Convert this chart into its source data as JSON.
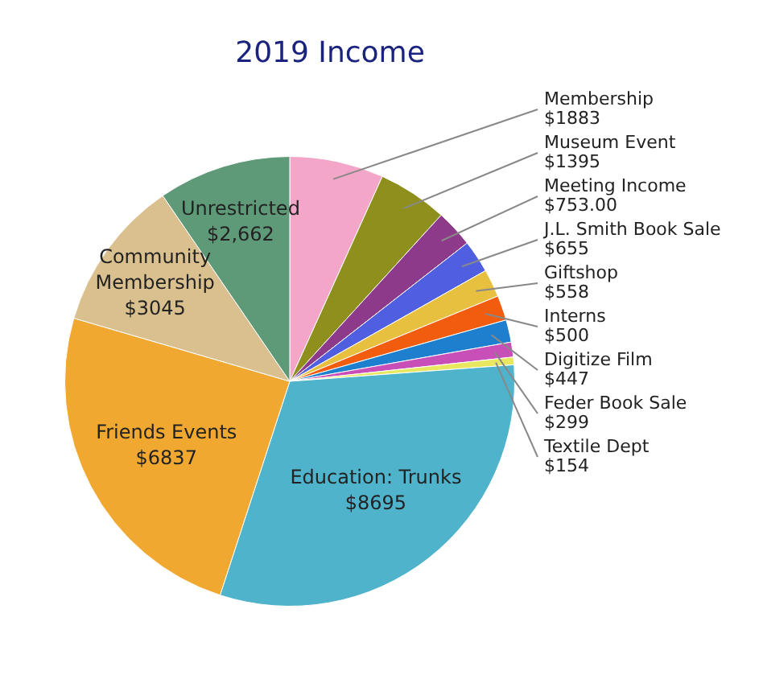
{
  "chart_data": {
    "type": "pie",
    "title": "2019 Income",
    "categories": [
      "Membership",
      "Museum Event",
      "Meeting Income",
      "J.L. Smith Book Sale",
      "Giftshop",
      "Interns",
      "Digitize Film",
      "Feder Book Sale",
      "Textile Dept",
      "Education: Trunks",
      "Friends Events",
      "Community Membership",
      "Unrestricted"
    ],
    "values": [
      1883,
      1395,
      753,
      655,
      558,
      500,
      447,
      299,
      154,
      8695,
      6837,
      3045,
      2662
    ],
    "value_labels": [
      "$1883",
      "$1395",
      "$753.00",
      "$655",
      "$558",
      "$500",
      "$447",
      "$299",
      "$154",
      "$8695",
      "$6837",
      "$3045",
      "$2,662"
    ],
    "colors": [
      "#f4a6c8",
      "#8f8f1e",
      "#8e3a8a",
      "#4f5fe0",
      "#e8c040",
      "#f25c0f",
      "#1f7fcf",
      "#c84fb8",
      "#e8e860",
      "#4fb3cc",
      "#f0a830",
      "#d9c08e",
      "#5e9a78"
    ]
  }
}
